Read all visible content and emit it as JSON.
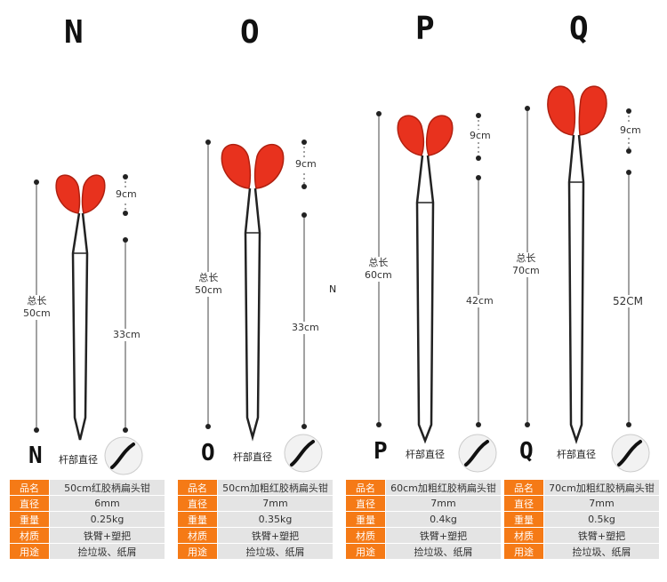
{
  "stray_letter": "N",
  "products": [
    {
      "letter": "N",
      "total_label": "总长",
      "total_length": "50cm",
      "handle_length": "9cm",
      "rod_length": "33cm",
      "diameter_caption": "杆部直径",
      "specs": [
        {
          "key": "品名",
          "value": "50cm红胶柄扁头钳"
        },
        {
          "key": "直径",
          "value": "6mm"
        },
        {
          "key": "重量",
          "value": "0.25kg"
        },
        {
          "key": "材质",
          "value": "铁臂+塑把"
        },
        {
          "key": "用途",
          "value": "捡垃圾、纸屑"
        }
      ]
    },
    {
      "letter": "O",
      "total_label": "总长",
      "total_length": "50cm",
      "handle_length": "9cm",
      "rod_length": "33cm",
      "diameter_caption": "杆部直径",
      "specs": [
        {
          "key": "品名",
          "value": "50cm加粗红胶柄扁头钳"
        },
        {
          "key": "直径",
          "value": "7mm"
        },
        {
          "key": "重量",
          "value": "0.35kg"
        },
        {
          "key": "材质",
          "value": "铁臂+塑把"
        },
        {
          "key": "用途",
          "value": "捡垃圾、纸屑"
        }
      ]
    },
    {
      "letter": "P",
      "total_label": "总长",
      "total_length": "60cm",
      "handle_length": "9cm",
      "rod_length": "42cm",
      "diameter_caption": "杆部直径",
      "specs": [
        {
          "key": "品名",
          "value": "60cm加粗红胶柄扁头钳"
        },
        {
          "key": "直径",
          "value": "7mm"
        },
        {
          "key": "重量",
          "value": "0.4kg"
        },
        {
          "key": "材质",
          "value": "铁臂+塑把"
        },
        {
          "key": "用途",
          "value": "捡垃圾、纸屑"
        }
      ]
    },
    {
      "letter": "Q",
      "total_label": "总长",
      "total_length": "70cm",
      "handle_length": "9cm",
      "rod_length": "52CM",
      "diameter_caption": "杆部直径",
      "specs": [
        {
          "key": "品名",
          "value": "70cm加粗红胶柄扁头钳"
        },
        {
          "key": "直径",
          "value": "7mm"
        },
        {
          "key": "重量",
          "value": "0.5kg"
        },
        {
          "key": "材质",
          "value": "铁臂+塑把"
        },
        {
          "key": "用途",
          "value": "捡垃圾、纸屑"
        }
      ]
    }
  ]
}
